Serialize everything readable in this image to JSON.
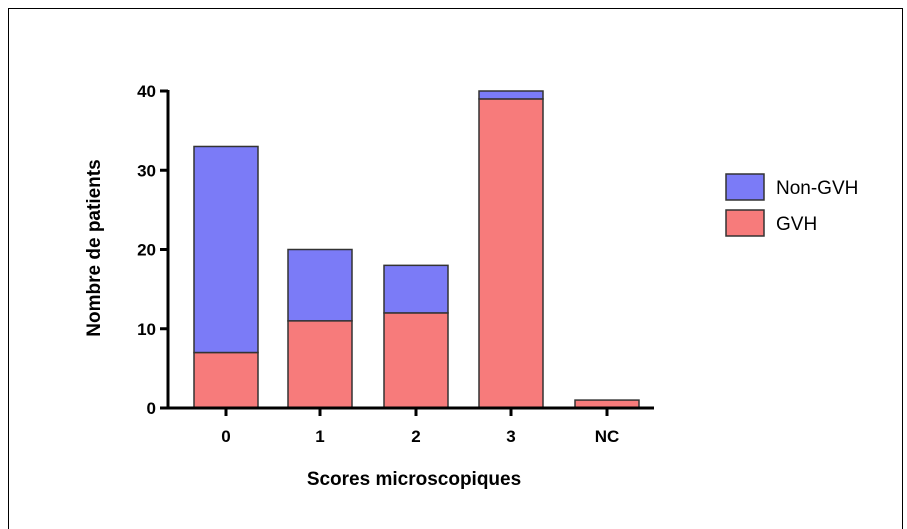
{
  "chart_data": {
    "type": "bar",
    "stacked": true,
    "categories": [
      "0",
      "1",
      "2",
      "3",
      "NC"
    ],
    "series": [
      {
        "name": "GVH",
        "values": [
          7,
          11,
          12,
          39,
          1
        ],
        "color": "#f77b7b"
      },
      {
        "name": "Non-GVH",
        "values": [
          26,
          9,
          6,
          1,
          0
        ],
        "color": "#7b7bf7"
      }
    ],
    "xlabel": "Scores microscopiques",
    "ylabel": "Nombre de patients",
    "ylim": [
      0,
      40
    ],
    "yticks": [
      0,
      10,
      20,
      30,
      40
    ],
    "grid": false,
    "legend": {
      "position": "right",
      "order": [
        "Non-GVH",
        "GVH"
      ]
    }
  }
}
